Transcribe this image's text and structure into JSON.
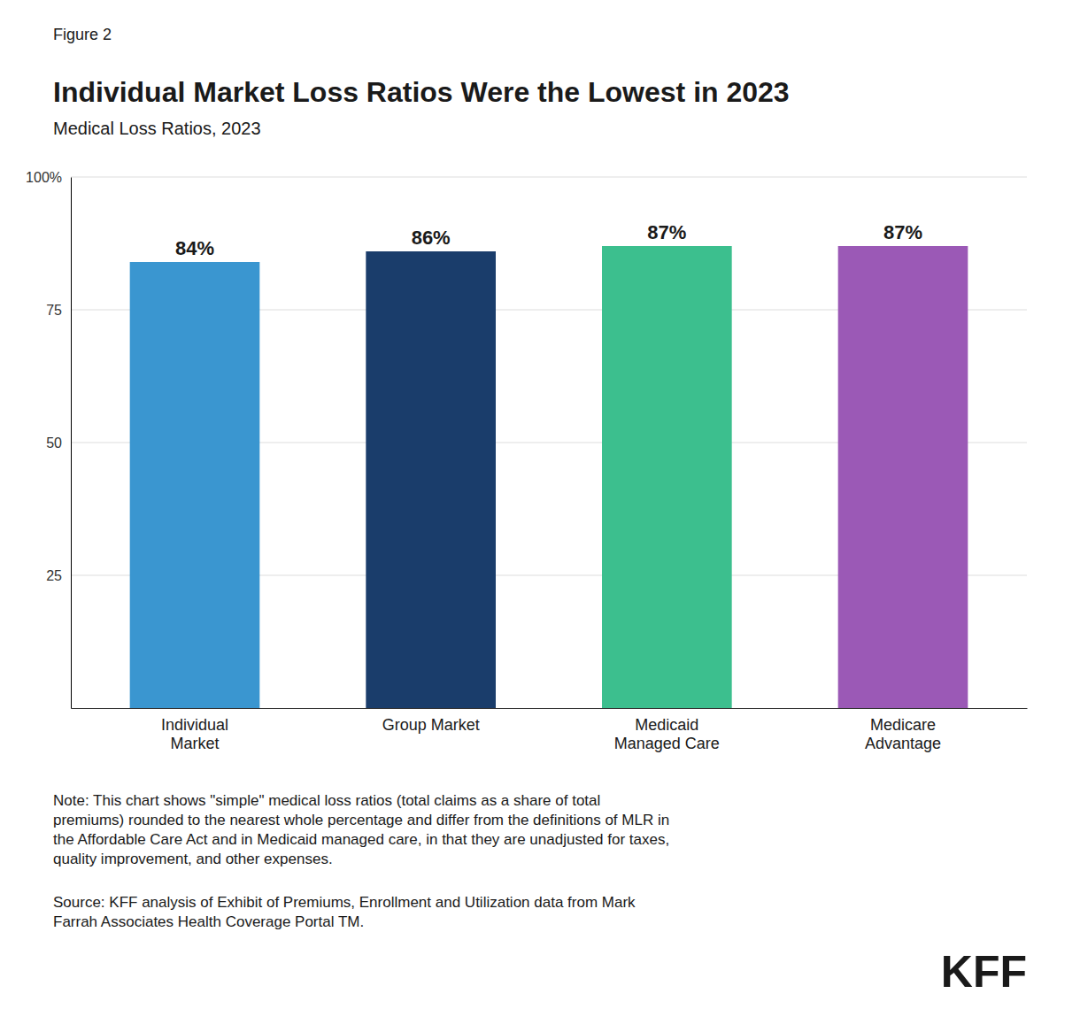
{
  "chart_data": {
    "type": "bar",
    "figure_label": "Figure 2",
    "title": "Individual Market Loss Ratios Were the Lowest in 2023",
    "subtitle": "Medical Loss Ratios, 2023",
    "categories": [
      "Individual\nMarket",
      "Group Market",
      "Medicaid\nManaged Care",
      "Medicare\nAdvantage"
    ],
    "values": [
      84,
      86,
      87,
      87
    ],
    "value_labels": [
      "84%",
      "86%",
      "87%",
      "87%"
    ],
    "colors": [
      "#3a96d0",
      "#1a3d6b",
      "#3cbf8e",
      "#9b59b6"
    ],
    "data_labels": true,
    "ylim": [
      0,
      100
    ],
    "yticks": [
      25,
      50,
      75,
      {
        "value": 100,
        "label": "100%"
      }
    ],
    "grid": true,
    "note": "Note: This chart shows \"simple\" medical loss ratios (total claims as a share of total\npremiums) rounded to the nearest whole percentage and differ from the definitions of MLR in\nthe Affordable Care Act and in Medicaid managed care, in that they are unadjusted for taxes,\nquality improvement, and other expenses.",
    "source": "Source: KFF analysis of Exhibit of Premiums, Enrollment and Utilization data from Mark\nFarrah Associates Health Coverage Portal TM.",
    "logo": "KFF"
  }
}
